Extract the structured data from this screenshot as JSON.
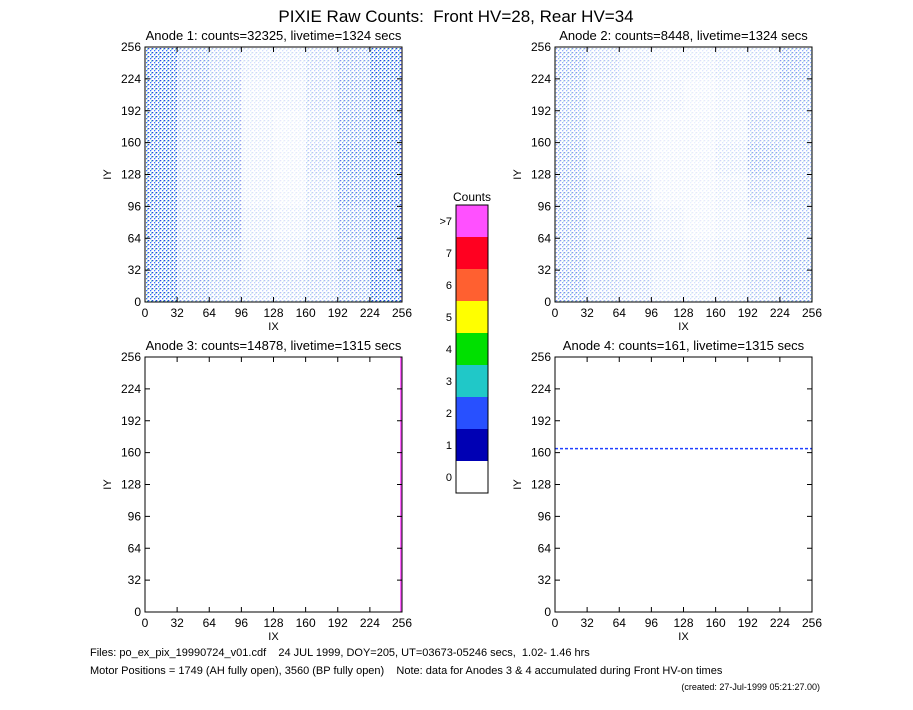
{
  "chart_data": {
    "type": "heatmap",
    "title": "PIXIE Raw Counts:  Front HV=28, Rear HV=34",
    "panels": [
      {
        "title": "Anode 1: counts=32325, livetime=1324 secs",
        "xlabel": "IX",
        "ylabel": "IY",
        "xlim": [
          0,
          256
        ],
        "ylim": [
          0,
          256
        ],
        "xticks": [
          0,
          32,
          64,
          96,
          128,
          160,
          192,
          224,
          256
        ],
        "yticks": [
          0,
          32,
          64,
          96,
          128,
          160,
          192,
          224,
          256
        ],
        "density": [
          [
            0.9,
            0.5,
            0.35,
            0.2,
            0.2,
            0.3,
            0.5,
            0.9
          ],
          [
            0.9,
            0.5,
            0.4,
            0.15,
            0.15,
            0.3,
            0.55,
            0.9
          ],
          [
            0.9,
            0.45,
            0.45,
            0.15,
            0.1,
            0.25,
            0.6,
            0.9
          ],
          [
            0.9,
            0.4,
            0.5,
            0.15,
            0.1,
            0.3,
            0.7,
            0.9
          ],
          [
            0.9,
            0.4,
            0.5,
            0.15,
            0.1,
            0.25,
            0.65,
            0.9
          ],
          [
            0.9,
            0.4,
            0.55,
            0.2,
            0.15,
            0.25,
            0.55,
            0.9
          ],
          [
            0.9,
            0.45,
            0.45,
            0.25,
            0.2,
            0.3,
            0.5,
            0.9
          ],
          [
            0.9,
            0.5,
            0.4,
            0.3,
            0.3,
            0.35,
            0.5,
            0.9
          ]
        ],
        "lines": []
      },
      {
        "title": "Anode 2: counts=8448, livetime=1324 secs",
        "xlabel": "IX",
        "ylabel": "IY",
        "xlim": [
          0,
          256
        ],
        "ylim": [
          0,
          256
        ],
        "xticks": [
          0,
          32,
          64,
          96,
          128,
          160,
          192,
          224,
          256
        ],
        "yticks": [
          0,
          32,
          64,
          96,
          128,
          160,
          192,
          224,
          256
        ],
        "density": [
          [
            0.5,
            0.3,
            0.2,
            0.15,
            0.15,
            0.2,
            0.25,
            0.5
          ],
          [
            0.45,
            0.25,
            0.2,
            0.15,
            0.1,
            0.15,
            0.25,
            0.45
          ],
          [
            0.45,
            0.25,
            0.15,
            0.1,
            0.1,
            0.15,
            0.35,
            0.4
          ],
          [
            0.5,
            0.25,
            0.15,
            0.1,
            0.1,
            0.2,
            0.45,
            0.4
          ],
          [
            0.5,
            0.3,
            0.2,
            0.1,
            0.1,
            0.15,
            0.35,
            0.4
          ],
          [
            0.5,
            0.3,
            0.25,
            0.15,
            0.1,
            0.15,
            0.25,
            0.4
          ],
          [
            0.5,
            0.35,
            0.25,
            0.2,
            0.15,
            0.2,
            0.3,
            0.45
          ],
          [
            0.55,
            0.35,
            0.3,
            0.2,
            0.2,
            0.25,
            0.35,
            0.5
          ]
        ],
        "lines": []
      },
      {
        "title": "Anode 3: counts=14878, livetime=1315 secs",
        "xlabel": "IX",
        "ylabel": "IY",
        "xlim": [
          0,
          256
        ],
        "ylim": [
          0,
          256
        ],
        "xticks": [
          0,
          32,
          64,
          96,
          128,
          160,
          192,
          224,
          256
        ],
        "yticks": [
          0,
          32,
          64,
          96,
          128,
          160,
          192,
          224,
          256
        ],
        "density": [],
        "lines": [
          {
            "axis": "x",
            "at": 255,
            "color": "#ff60ff"
          }
        ]
      },
      {
        "title": "Anode 4: counts=161, livetime=1315 secs",
        "xlabel": "IX",
        "ylabel": "IY",
        "xlim": [
          0,
          256
        ],
        "ylim": [
          0,
          256
        ],
        "xticks": [
          0,
          32,
          64,
          96,
          128,
          160,
          192,
          224,
          256
        ],
        "yticks": [
          0,
          32,
          64,
          96,
          128,
          160,
          192,
          224,
          256
        ],
        "density": [],
        "lines": [
          {
            "axis": "y",
            "at": 164,
            "color": "#2040ff"
          }
        ]
      }
    ],
    "colorbar": {
      "title": "Counts",
      "ticks": [
        0,
        1,
        2,
        3,
        4,
        5,
        6,
        7,
        {
          "value": 8,
          "label": ">7"
        }
      ],
      "colors": [
        "#ffffff",
        "#0000b4",
        "#2850ff",
        "#20c8c8",
        "#00e000",
        "#ffff00",
        "#ff6030",
        "#ff0020",
        "#ff50ff"
      ]
    },
    "notes": [
      "Files: po_ex_pix_19990724_v01.cdf    24 JUL 1999, DOY=205, UT=03673-05246 secs,  1.02- 1.46 hrs",
      "Motor Positions = 1749 (AH fully open), 3560 (BP fully open)    Note: data for Anodes 3 & 4 accumulated during Front HV-on times",
      "(created: 27-Jul-1999 05:21:27.00)"
    ]
  }
}
